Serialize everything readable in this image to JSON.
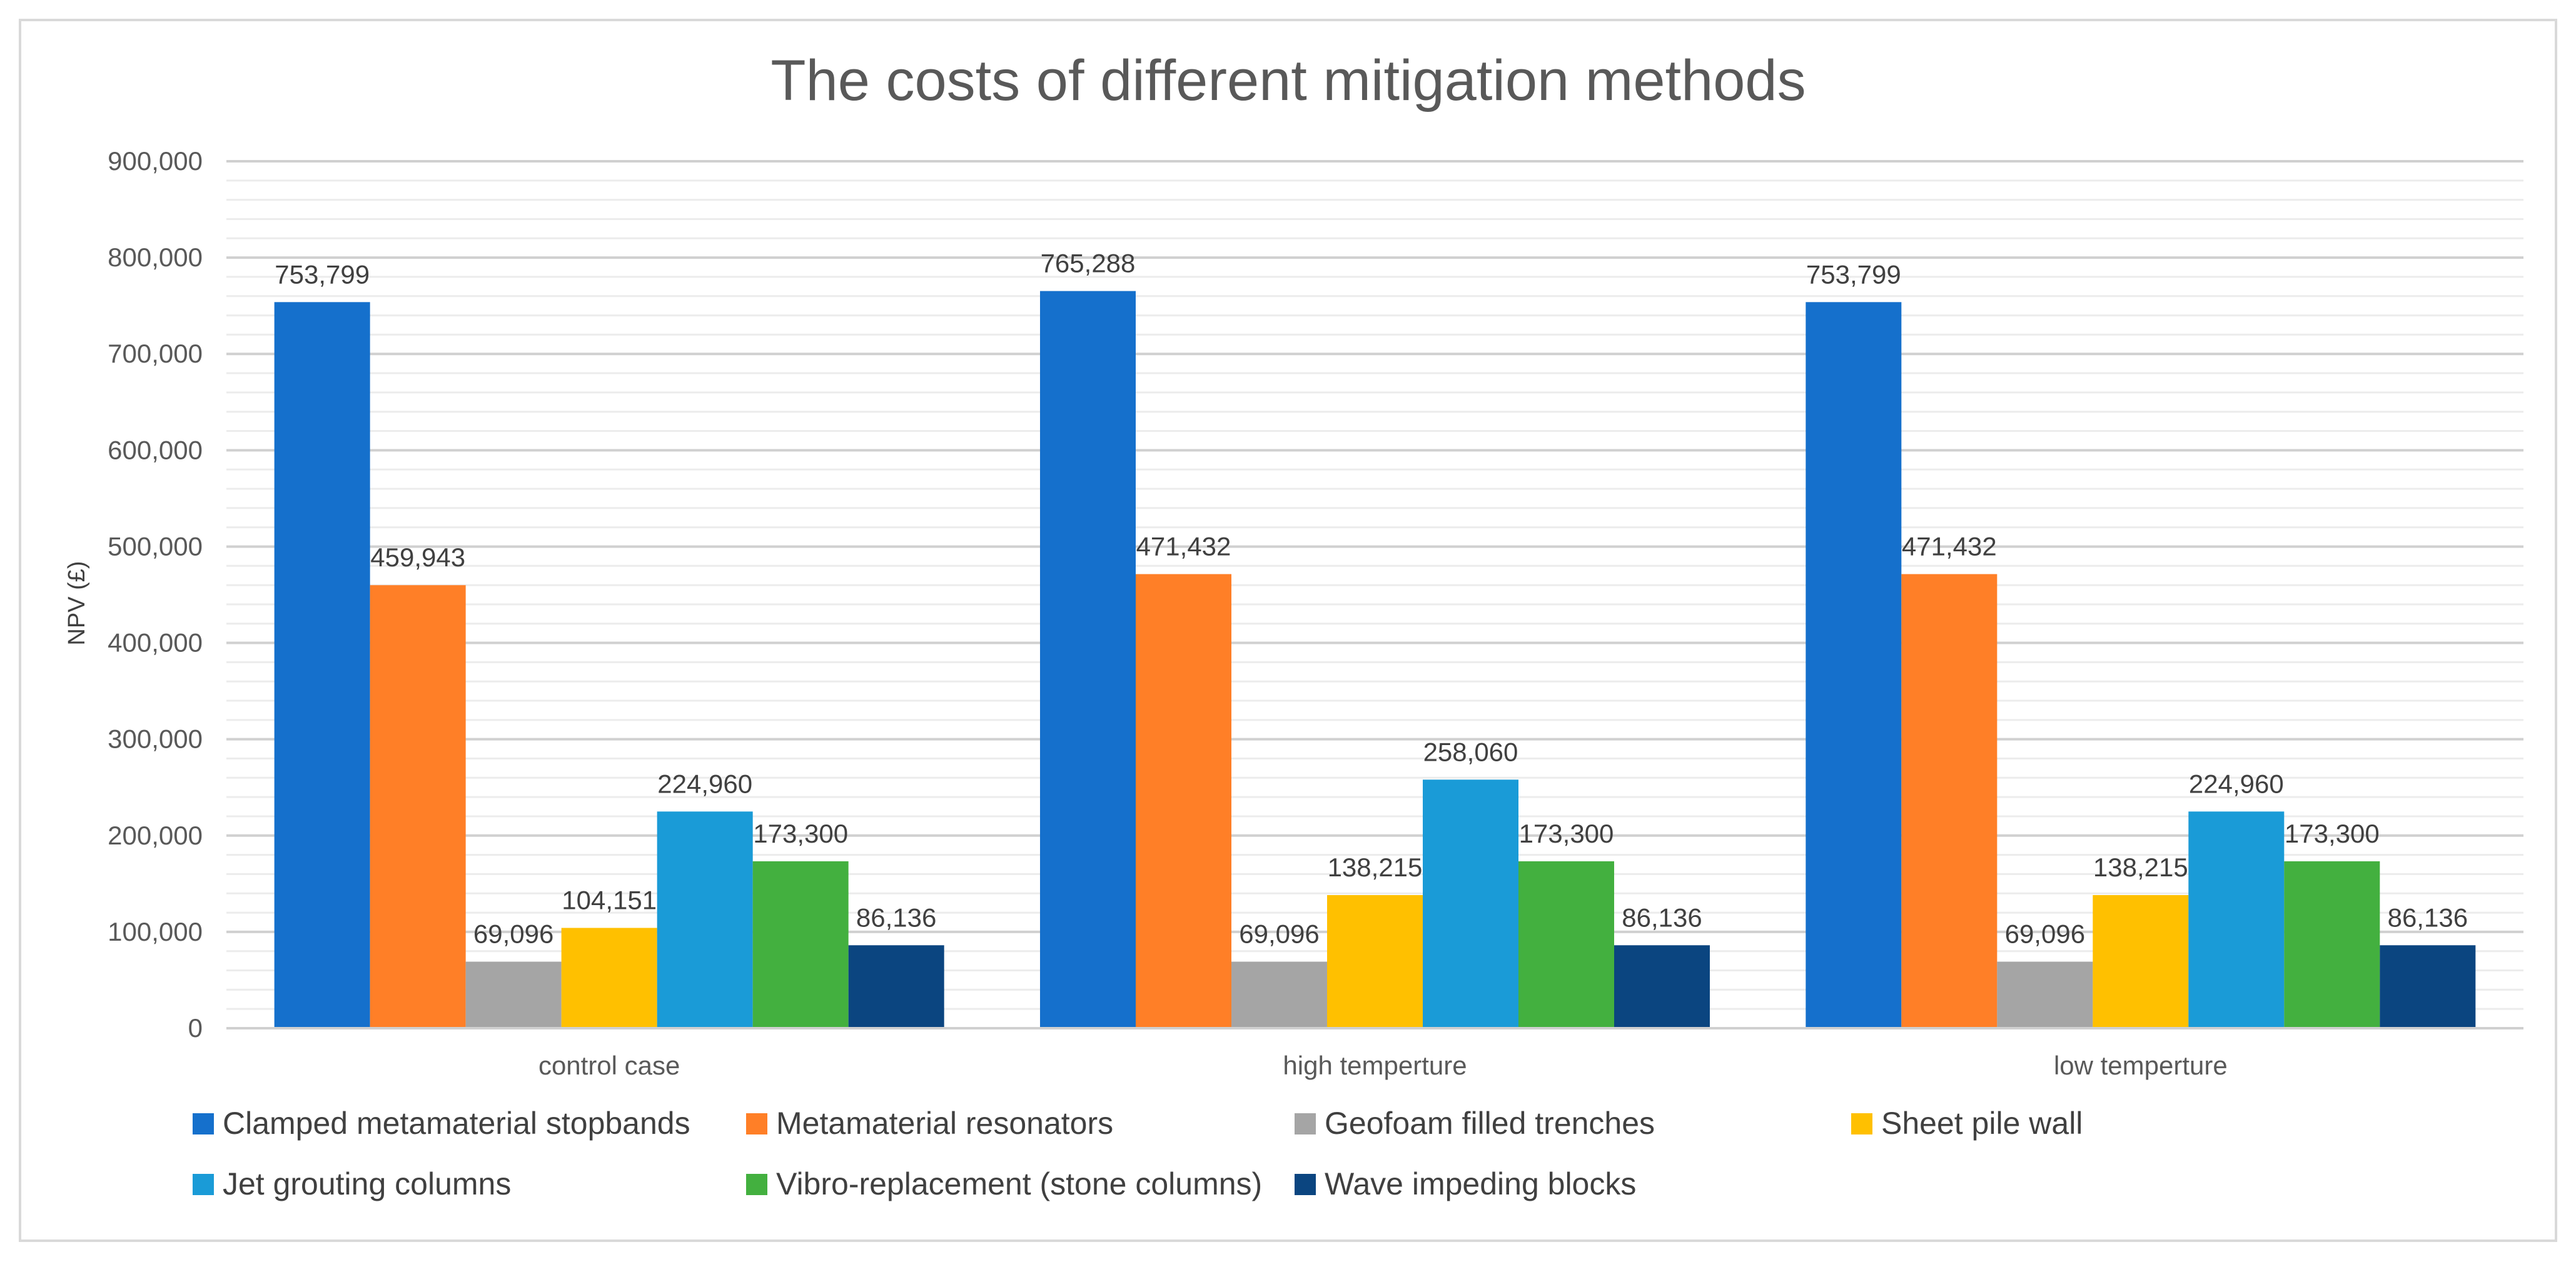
{
  "chart_data": {
    "type": "bar",
    "title": "The costs of different mitigation methods",
    "xlabel": "",
    "ylabel": "NPV (£)",
    "ylim": [
      0,
      900000
    ],
    "yticks": [
      "0",
      "100,000",
      "200,000",
      "300,000",
      "400,000",
      "500,000",
      "600,000",
      "700,000",
      "800,000",
      "900,000"
    ],
    "ytick_values": [
      0,
      100000,
      200000,
      300000,
      400000,
      500000,
      600000,
      700000,
      800000,
      900000
    ],
    "grid": true,
    "legend_position": "bottom",
    "categories": [
      "control case",
      "high temperture",
      "low temperture"
    ],
    "series": [
      {
        "name": "Clamped metamaterial stopbands",
        "color": "#1570CC",
        "values": [
          753799,
          765288,
          753799
        ],
        "labels": [
          "753,799",
          "765,288",
          "753,799"
        ]
      },
      {
        "name": "Metamaterial resonators",
        "color": "#FF7F27",
        "values": [
          459943,
          471432,
          471432
        ],
        "labels": [
          "459,943",
          "471,432",
          "471,432"
        ]
      },
      {
        "name": "Geofoam filled trenches",
        "color": "#A5A5A5",
        "values": [
          69096,
          69096,
          69096
        ],
        "labels": [
          "69,096",
          "69,096",
          "69,096"
        ]
      },
      {
        "name": "Sheet pile wall",
        "color": "#FFC000",
        "values": [
          104151,
          138215,
          138215
        ],
        "labels": [
          "104,151",
          "138,215",
          "138,215"
        ]
      },
      {
        "name": "Jet grouting columns",
        "color": "#1A9BD7",
        "values": [
          224960,
          258060,
          224960
        ],
        "labels": [
          "224,960",
          "258,060",
          "224,960"
        ]
      },
      {
        "name": "Vibro-replacement (stone columns)",
        "color": "#43B03F",
        "values": [
          173300,
          173300,
          173300
        ],
        "labels": [
          "173,300",
          "173,300",
          "173,300"
        ]
      },
      {
        "name": "Wave impeding blocks",
        "color": "#0B4580",
        "values": [
          86136,
          86136,
          86136
        ],
        "labels": [
          "86,136",
          "86,136",
          "86,136"
        ]
      }
    ]
  }
}
